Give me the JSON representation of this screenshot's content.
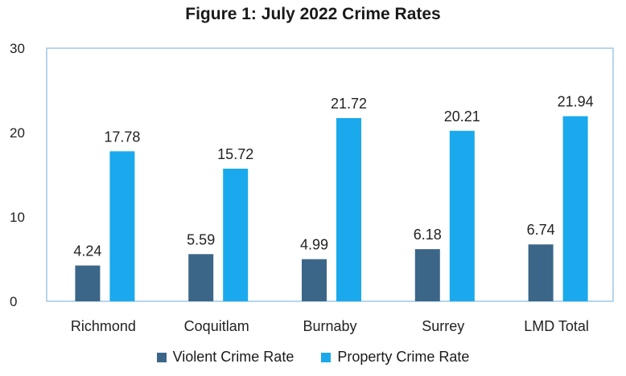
{
  "chart_data": {
    "type": "bar",
    "title": "Figure 1: July 2022 Crime Rates",
    "categories": [
      "Richmond",
      "Coquitlam",
      "Burnaby",
      "Surrey",
      "LMD Total"
    ],
    "series": [
      {
        "name": "Violent Crime Rate",
        "values": [
          4.24,
          5.59,
          4.99,
          6.18,
          6.74
        ],
        "color": "#3b6688"
      },
      {
        "name": "Property Crime Rate",
        "values": [
          17.78,
          15.72,
          21.72,
          20.21,
          21.94
        ],
        "color": "#1aa9ec"
      }
    ],
    "ylim": [
      0,
      30
    ],
    "yticks": [
      "0",
      "10",
      "20",
      "30"
    ],
    "data_labels": [
      [
        "4.24",
        "5.59",
        "4.99",
        "6.18",
        "6.74"
      ],
      [
        "17.78",
        "15.72",
        "21.72",
        "20.21",
        "21.94"
      ]
    ],
    "grid": false,
    "legend_position": "bottom"
  }
}
